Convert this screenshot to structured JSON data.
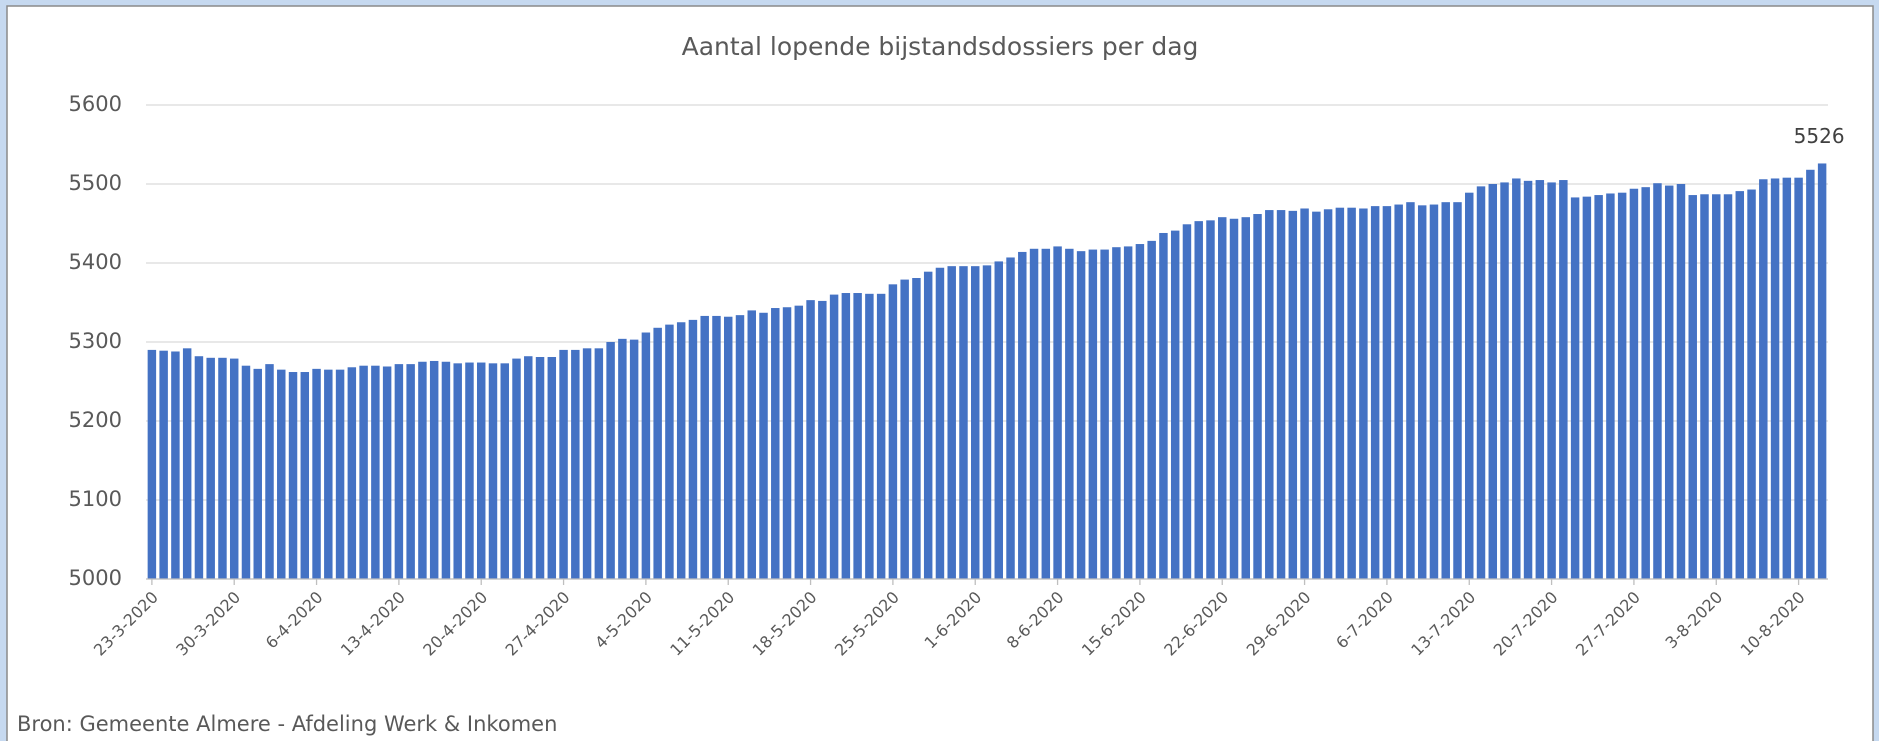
{
  "chart_data": {
    "type": "bar",
    "title": "Aantal lopende bijstandsdossiers per dag",
    "source": "Bron: Gemeente Almere - Afdeling Werk & Inkomen",
    "categories": [
      "23-3-2020",
      null,
      null,
      null,
      null,
      null,
      null,
      "30-3-2020",
      null,
      null,
      null,
      null,
      null,
      null,
      "6-4-2020",
      null,
      null,
      null,
      null,
      null,
      null,
      "13-4-2020",
      null,
      null,
      null,
      null,
      null,
      null,
      "20-4-2020",
      null,
      null,
      null,
      null,
      null,
      null,
      "27-4-2020",
      null,
      null,
      null,
      null,
      null,
      null,
      "4-5-2020",
      null,
      null,
      null,
      null,
      null,
      null,
      "11-5-2020",
      null,
      null,
      null,
      null,
      null,
      null,
      "18-5-2020",
      null,
      null,
      null,
      null,
      null,
      null,
      "25-5-2020",
      null,
      null,
      null,
      null,
      null,
      null,
      "1-6-2020",
      null,
      null,
      null,
      null,
      null,
      null,
      "8-6-2020",
      null,
      null,
      null,
      null,
      null,
      null,
      "15-6-2020",
      null,
      null,
      null,
      null,
      null,
      null,
      "22-6-2020",
      null,
      null,
      null,
      null,
      null,
      null,
      "29-6-2020",
      null,
      null,
      null,
      null,
      null,
      null,
      "6-7-2020",
      null,
      null,
      null,
      null,
      null,
      null,
      "13-7-2020",
      null,
      null,
      null,
      null,
      null,
      null,
      "20-7-2020",
      null,
      null,
      null,
      null,
      null,
      null,
      "27-7-2020",
      null,
      null,
      null,
      null,
      null,
      null,
      "3-8-2020",
      null,
      null,
      null,
      null,
      null,
      null,
      "10-8-2020",
      null,
      null
    ],
    "values": [
      5290,
      5289,
      5288,
      5292,
      5282,
      5280,
      5280,
      5279,
      5270,
      5266,
      5272,
      5265,
      5262,
      5262,
      5266,
      5265,
      5265,
      5268,
      5270,
      5270,
      5269,
      5272,
      5272,
      5275,
      5276,
      5275,
      5273,
      5274,
      5274,
      5273,
      5273,
      5279,
      5282,
      5281,
      5281,
      5290,
      5290,
      5292,
      5292,
      5300,
      5304,
      5303,
      5312,
      5318,
      5322,
      5325,
      5328,
      5333,
      5333,
      5332,
      5334,
      5340,
      5337,
      5343,
      5344,
      5346,
      5353,
      5352,
      5360,
      5362,
      5362,
      5361,
      5361,
      5373,
      5379,
      5381,
      5389,
      5394,
      5396,
      5396,
      5396,
      5397,
      5402,
      5407,
      5414,
      5418,
      5418,
      5421,
      5418,
      5415,
      5417,
      5417,
      5420,
      5421,
      5424,
      5428,
      5438,
      5441,
      5449,
      5453,
      5454,
      5458,
      5456,
      5458,
      5462,
      5467,
      5467,
      5466,
      5469,
      5465,
      5468,
      5470,
      5470,
      5469,
      5472,
      5472,
      5474,
      5477,
      5473,
      5474,
      5477,
      5477,
      5489,
      5497,
      5500,
      5502,
      5507,
      5504,
      5505,
      5502,
      5505,
      5483,
      5484,
      5486,
      5488,
      5489,
      5494,
      5496,
      5501,
      5498,
      5500,
      5486,
      5487,
      5487,
      5487,
      5491,
      5493,
      5506,
      5507,
      5508,
      5508,
      5518,
      5526
    ],
    "value_labels": [
      null,
      null,
      null,
      null,
      null,
      null,
      null,
      null,
      null,
      null,
      null,
      null,
      null,
      null,
      null,
      null,
      null,
      null,
      null,
      null,
      null,
      null,
      null,
      null,
      null,
      null,
      null,
      null,
      null,
      null,
      null,
      null,
      null,
      null,
      null,
      null,
      null,
      null,
      null,
      null,
      null,
      null,
      null,
      null,
      null,
      null,
      null,
      null,
      null,
      null,
      null,
      null,
      null,
      null,
      null,
      null,
      null,
      null,
      null,
      null,
      null,
      null,
      null,
      null,
      null,
      null,
      null,
      null,
      null,
      null,
      null,
      null,
      null,
      null,
      null,
      null,
      null,
      null,
      null,
      null,
      null,
      null,
      null,
      null,
      null,
      null,
      null,
      null,
      null,
      null,
      null,
      null,
      null,
      null,
      null,
      null,
      null,
      null,
      null,
      null,
      null,
      null,
      null,
      null,
      null,
      null,
      null,
      null,
      null,
      null,
      null,
      null,
      null,
      null,
      null,
      null,
      null,
      null,
      null,
      null,
      null,
      null,
      null,
      null,
      null,
      null,
      null,
      null,
      null,
      null,
      null,
      null,
      null,
      null,
      null,
      null,
      null,
      null,
      null,
      null,
      null,
      null,
      "5526"
    ],
    "color": "#4472c4",
    "ylim": [
      5000,
      5600
    ],
    "yticks": [
      5000,
      5100,
      5200,
      5300,
      5400,
      5500,
      5600
    ],
    "grid": true
  }
}
